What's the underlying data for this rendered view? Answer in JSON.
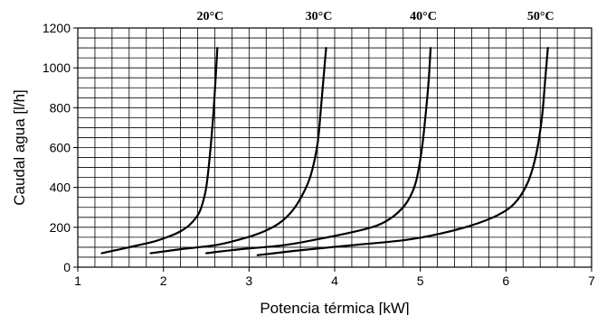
{
  "chart_data": {
    "type": "line",
    "title": "",
    "xlabel": "Potencia térmica [kW]",
    "ylabel": "Caudal agua [l/h]",
    "xlim": [
      1,
      7
    ],
    "ylim": [
      0,
      1200
    ],
    "xticks": [
      1,
      2,
      3,
      4,
      5,
      6,
      7
    ],
    "yticks": [
      0,
      200,
      400,
      600,
      800,
      1000,
      1200
    ],
    "minor_grid": {
      "x_step": 0.2,
      "y_step": 50
    },
    "grid": true,
    "series": [
      {
        "name": "20°C",
        "points": [
          [
            1.28,
            70
          ],
          [
            1.6,
            100
          ],
          [
            1.9,
            130
          ],
          [
            2.1,
            160
          ],
          [
            2.2,
            180
          ],
          [
            2.3,
            210
          ],
          [
            2.4,
            260
          ],
          [
            2.45,
            310
          ],
          [
            2.5,
            400
          ],
          [
            2.54,
            550
          ],
          [
            2.58,
            750
          ],
          [
            2.61,
            950
          ],
          [
            2.63,
            1100
          ]
        ]
      },
      {
        "name": "30°C",
        "points": [
          [
            1.85,
            70
          ],
          [
            2.2,
            90
          ],
          [
            2.6,
            110
          ],
          [
            2.9,
            140
          ],
          [
            3.15,
            175
          ],
          [
            3.35,
            220
          ],
          [
            3.5,
            280
          ],
          [
            3.62,
            360
          ],
          [
            3.72,
            460
          ],
          [
            3.8,
            620
          ],
          [
            3.84,
            800
          ],
          [
            3.87,
            950
          ],
          [
            3.9,
            1100
          ]
        ]
      },
      {
        "name": "40°C",
        "points": [
          [
            2.5,
            70
          ],
          [
            2.9,
            90
          ],
          [
            3.4,
            110
          ],
          [
            3.8,
            140
          ],
          [
            4.2,
            175
          ],
          [
            4.5,
            210
          ],
          [
            4.7,
            260
          ],
          [
            4.85,
            330
          ],
          [
            4.95,
            430
          ],
          [
            5.02,
            600
          ],
          [
            5.07,
            800
          ],
          [
            5.1,
            950
          ],
          [
            5.12,
            1100
          ]
        ]
      },
      {
        "name": "50°C",
        "points": [
          [
            3.1,
            60
          ],
          [
            3.6,
            85
          ],
          [
            4.2,
            110
          ],
          [
            4.8,
            135
          ],
          [
            5.2,
            165
          ],
          [
            5.6,
            210
          ],
          [
            5.9,
            260
          ],
          [
            6.1,
            320
          ],
          [
            6.25,
            420
          ],
          [
            6.35,
            560
          ],
          [
            6.42,
            750
          ],
          [
            6.46,
            950
          ],
          [
            6.49,
            1100
          ]
        ]
      }
    ],
    "annotations": [
      "20°C",
      "30°C",
      "40°C",
      "50°C"
    ]
  }
}
